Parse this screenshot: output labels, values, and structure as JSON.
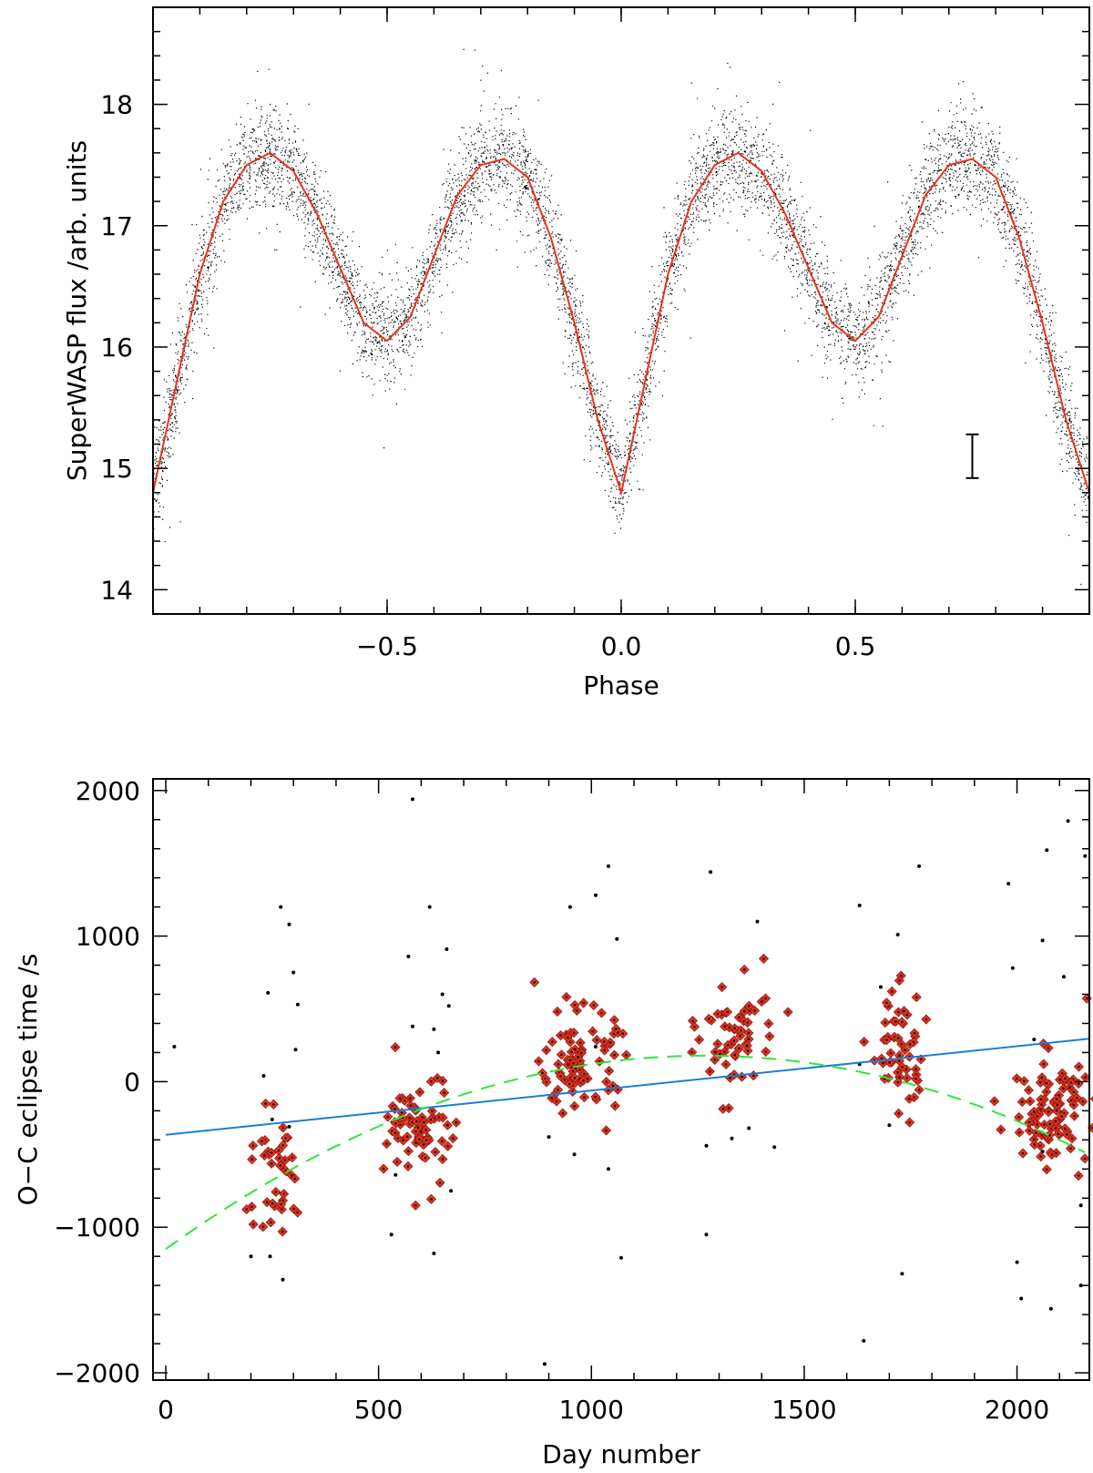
{
  "chart_data": [
    {
      "type": "scatter",
      "xlabel": "Phase",
      "ylabel": "SuperWASP flux /arb. units",
      "xlim": [
        -1.0,
        1.0
      ],
      "ylim": [
        13.8,
        18.8
      ],
      "xticks": [
        -0.5,
        0.0,
        0.5
      ],
      "xtick_labels": [
        "−0.5",
        "0.0",
        "0.5"
      ],
      "yticks": [
        14,
        15,
        16,
        17,
        18
      ],
      "ytick_labels": [
        "14",
        "15",
        "16",
        "17",
        "18"
      ],
      "grid": false,
      "series": [
        {
          "kind": "points",
          "color": "#000000",
          "description_values": "dense phase-folded photometry, scatter about the mean curve"
        },
        {
          "kind": "line",
          "color": "#e8321e",
          "x": [
            -1.0,
            -0.95,
            -0.9,
            -0.85,
            -0.8,
            -0.75,
            -0.7,
            -0.65,
            -0.6,
            -0.55,
            -0.5,
            -0.45,
            -0.4,
            -0.35,
            -0.3,
            -0.25,
            -0.2,
            -0.15,
            -0.1,
            -0.05,
            0.0,
            0.05,
            0.1,
            0.15,
            0.2,
            0.25,
            0.3,
            0.35,
            0.4,
            0.45,
            0.5,
            0.55,
            0.6,
            0.65,
            0.7,
            0.75,
            0.8,
            0.85,
            0.9,
            0.95,
            1.0
          ],
          "y": [
            14.8,
            15.7,
            16.6,
            17.2,
            17.5,
            17.6,
            17.45,
            17.1,
            16.65,
            16.2,
            16.05,
            16.25,
            16.75,
            17.25,
            17.5,
            17.55,
            17.4,
            16.9,
            16.2,
            15.4,
            14.8,
            15.7,
            16.6,
            17.2,
            17.5,
            17.6,
            17.45,
            17.1,
            16.65,
            16.2,
            16.05,
            16.25,
            16.75,
            17.25,
            17.5,
            17.55,
            17.4,
            16.9,
            16.2,
            15.4,
            14.8
          ]
        }
      ],
      "error_bar": {
        "x": 0.75,
        "y": 15.1,
        "half_height": 0.18
      }
    },
    {
      "type": "scatter",
      "xlabel": "Day number",
      "ylabel": "O−C eclipse time /s",
      "xlim": [
        -30,
        2170
      ],
      "ylim": [
        -2050,
        2080
      ],
      "xticks": [
        0,
        500,
        1000,
        1500,
        2000
      ],
      "xtick_labels": [
        "0",
        "500",
        "1000",
        "1500",
        "2000"
      ],
      "yticks": [
        -2000,
        -1000,
        0,
        1000,
        2000
      ],
      "ytick_labels": [
        "−2000",
        "−1000",
        "0",
        "1000",
        "2000"
      ],
      "grid": false,
      "groups": [
        {
          "center": 260,
          "spread": 70,
          "mean": -650,
          "sd": 220,
          "count": 40
        },
        {
          "center": 600,
          "spread": 70,
          "mean": -330,
          "sd": 190,
          "count": 70
        },
        {
          "center": 970,
          "spread": 80,
          "mean": 140,
          "sd": 170,
          "count": 90
        },
        {
          "center": 1340,
          "spread": 80,
          "mean": 300,
          "sd": 200,
          "count": 60
        },
        {
          "center": 1720,
          "spread": 60,
          "mean": 230,
          "sd": 220,
          "count": 55
        },
        {
          "center": 2080,
          "spread": 80,
          "mean": -200,
          "sd": 180,
          "count": 95
        }
      ],
      "outliers": [
        [
          20,
          240
        ],
        [
          240,
          610
        ],
        [
          230,
          40
        ],
        [
          270,
          1200
        ],
        [
          290,
          1080
        ],
        [
          300,
          750
        ],
        [
          310,
          530
        ],
        [
          305,
          220
        ],
        [
          275,
          -1360
        ],
        [
          250,
          -260
        ],
        [
          290,
          -310
        ],
        [
          200,
          -1200
        ],
        [
          245,
          -1200
        ],
        [
          580,
          1940
        ],
        [
          570,
          860
        ],
        [
          580,
          380
        ],
        [
          620,
          1200
        ],
        [
          630,
          360
        ],
        [
          650,
          600
        ],
        [
          660,
          910
        ],
        [
          665,
          520
        ],
        [
          640,
          200
        ],
        [
          530,
          -1050
        ],
        [
          630,
          -1180
        ],
        [
          670,
          -750
        ],
        [
          540,
          -640
        ],
        [
          890,
          -1940
        ],
        [
          950,
          1200
        ],
        [
          1010,
          1280
        ],
        [
          1040,
          1480
        ],
        [
          1060,
          980
        ],
        [
          1070,
          -1210
        ],
        [
          1040,
          -600
        ],
        [
          900,
          -380
        ],
        [
          960,
          -500
        ],
        [
          1010,
          240
        ],
        [
          1280,
          1440
        ],
        [
          1270,
          -1050
        ],
        [
          1270,
          -440
        ],
        [
          1330,
          -390
        ],
        [
          1370,
          -320
        ],
        [
          1430,
          -450
        ],
        [
          1390,
          1100
        ],
        [
          1630,
          1210
        ],
        [
          1640,
          -1780
        ],
        [
          1680,
          650
        ],
        [
          1720,
          1010
        ],
        [
          1730,
          -1320
        ],
        [
          1700,
          -300
        ],
        [
          1770,
          1480
        ],
        [
          1630,
          120
        ],
        [
          1980,
          1360
        ],
        [
          1990,
          780
        ],
        [
          2010,
          -1490
        ],
        [
          2000,
          -1240
        ],
        [
          2060,
          970
        ],
        [
          2070,
          1590
        ],
        [
          2120,
          1790
        ],
        [
          2080,
          -1560
        ],
        [
          2110,
          720
        ],
        [
          2150,
          -1400
        ],
        [
          2160,
          1550
        ],
        [
          2150,
          -850
        ],
        [
          2140,
          -650
        ],
        [
          2040,
          290
        ],
        [
          2060,
          -480
        ]
      ],
      "series": [
        {
          "kind": "line",
          "color": "#1a7fd6",
          "style": "solid",
          "x": [
            0,
            2170
          ],
          "y": [
            -365,
            295
          ]
        },
        {
          "kind": "line",
          "color": "#2ee63a",
          "style": "dashed",
          "equation_coeffs": [
            -1150,
            2.1,
            -0.00083
          ],
          "x_range": [
            0,
            2170
          ]
        }
      ]
    }
  ]
}
